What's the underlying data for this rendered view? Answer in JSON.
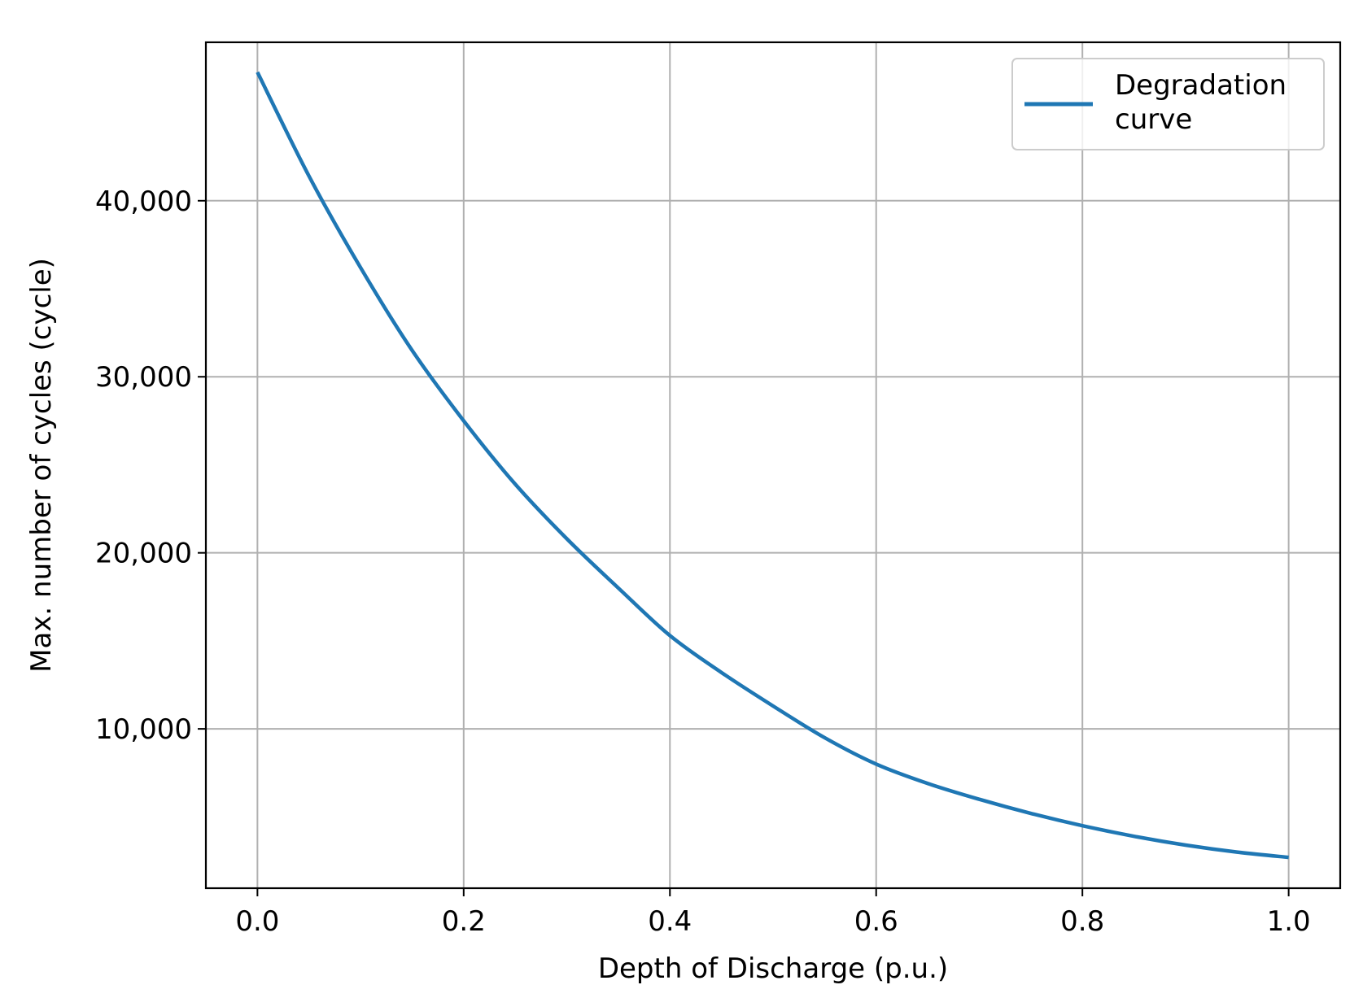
{
  "chart_data": {
    "type": "line",
    "title": "",
    "xlabel": "Depth of Discharge (p.u.)",
    "ylabel": "Max. number of cycles (cycle)",
    "xlim": [
      -0.05,
      1.05
    ],
    "ylim": [
      950,
      49000
    ],
    "x_ticks": [
      {
        "value": 0.0,
        "label": "0.0"
      },
      {
        "value": 0.2,
        "label": "0.2"
      },
      {
        "value": 0.4,
        "label": "0.4"
      },
      {
        "value": 0.6,
        "label": "0.6"
      },
      {
        "value": 0.8,
        "label": "0.8"
      },
      {
        "value": 1.0,
        "label": "1.0"
      }
    ],
    "y_ticks": [
      {
        "value": 10000,
        "label": "10,000"
      },
      {
        "value": 20000,
        "label": "20,000"
      },
      {
        "value": 30000,
        "label": "30,000"
      },
      {
        "value": 40000,
        "label": "40,000"
      }
    ],
    "grid": true,
    "legend": {
      "placement": "top-right",
      "lines": [
        "Degradation",
        "curve"
      ]
    },
    "series": [
      {
        "name": "Degradation curve",
        "color": "#1f77b4",
        "x": [
          0.0,
          0.05,
          0.1,
          0.15,
          0.2,
          0.25,
          0.3,
          0.35,
          0.4,
          0.45,
          0.5,
          0.55,
          0.6,
          0.65,
          0.7,
          0.75,
          0.8,
          0.85,
          0.9,
          0.95,
          1.0
        ],
        "y": [
          47300,
          41400,
          36200,
          31500,
          27500,
          23900,
          20800,
          18000,
          15300,
          13200,
          11300,
          9500,
          8000,
          6900,
          6000,
          5200,
          4500,
          3900,
          3400,
          3000,
          2700
        ]
      }
    ]
  }
}
